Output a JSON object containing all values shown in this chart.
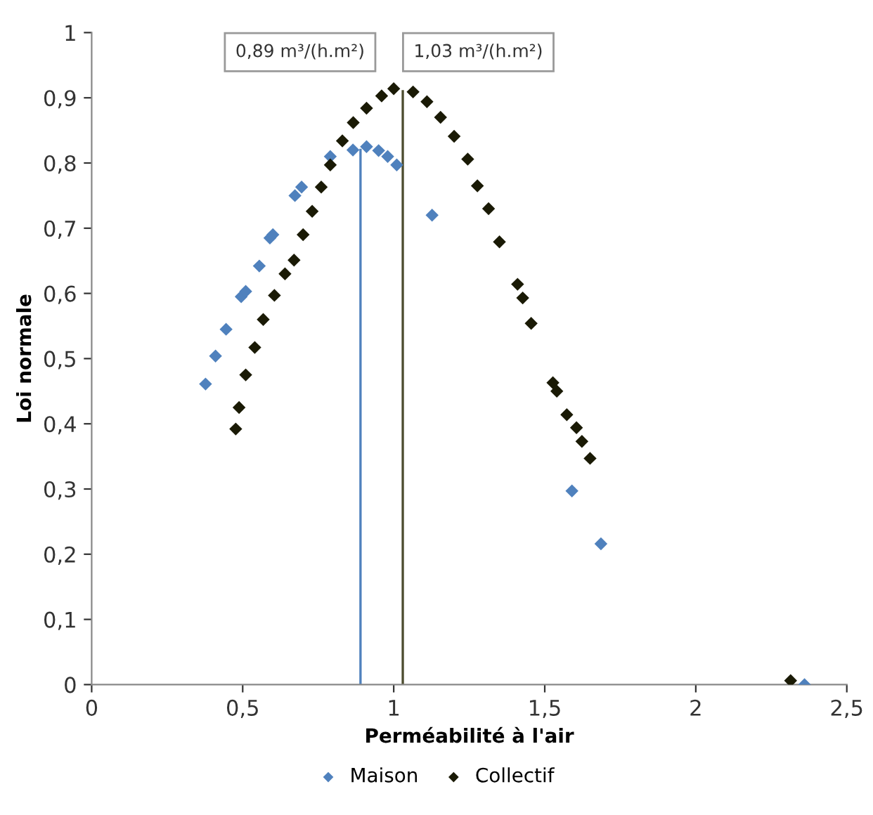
{
  "chart_data": {
    "type": "scatter",
    "xlabel": "Perméabilité à l'air",
    "ylabel": "Loi normale",
    "xlim": [
      0,
      2.5
    ],
    "xticks": [
      {
        "value": 0,
        "label": "0"
      },
      {
        "value": 0.5,
        "label": "0,5"
      },
      {
        "value": 1,
        "label": "1"
      },
      {
        "value": 1.5,
        "label": "1,5"
      },
      {
        "value": 2,
        "label": "2"
      },
      {
        "value": 2.5,
        "label": "2,5"
      }
    ],
    "ylim": [
      0,
      1
    ],
    "yticks": [
      {
        "value": 0,
        "label": "0"
      },
      {
        "value": 0.1,
        "label": "0,1"
      },
      {
        "value": 0.2,
        "label": "0,2"
      },
      {
        "value": 0.3,
        "label": "0,3"
      },
      {
        "value": 0.4,
        "label": "0,4"
      },
      {
        "value": 0.5,
        "label": "0,5"
      },
      {
        "value": 0.6,
        "label": "0,6"
      },
      {
        "value": 0.7,
        "label": "0,7"
      },
      {
        "value": 0.8,
        "label": "0,8"
      },
      {
        "value": 0.9,
        "label": "0,9"
      },
      {
        "value": 1,
        "label": "1"
      }
    ],
    "grid": false,
    "legend": "bottom",
    "marker": "diamond",
    "annotations": [
      "0,89 m³/(h.m²)",
      "1,03 m³/(h.m²)"
    ],
    "series": [
      {
        "name": "Maison",
        "color": "#4f81bd",
        "x": [
          0.377,
          0.41,
          0.445,
          0.495,
          0.51,
          0.555,
          0.59,
          0.6,
          0.673,
          0.695,
          0.79,
          0.865,
          0.91,
          0.95,
          0.98,
          1.01,
          1.127,
          1.59,
          1.686,
          2.36
        ],
        "values": [
          0.461,
          0.504,
          0.545,
          0.595,
          0.603,
          0.642,
          0.685,
          0.69,
          0.75,
          0.763,
          0.81,
          0.82,
          0.825,
          0.819,
          0.81,
          0.797,
          0.72,
          0.297,
          0.216,
          0.0
        ]
      },
      {
        "name": "Collectif",
        "color": "#1a1a05",
        "x": [
          0.477,
          0.488,
          0.51,
          0.54,
          0.568,
          0.605,
          0.64,
          0.67,
          0.7,
          0.73,
          0.76,
          0.79,
          0.83,
          0.866,
          0.91,
          0.96,
          1.0,
          1.064,
          1.11,
          1.155,
          1.2,
          1.245,
          1.277,
          1.314,
          1.35,
          1.41,
          1.427,
          1.455,
          1.527,
          1.54,
          1.573,
          1.605,
          1.623,
          1.65,
          2.314
        ],
        "values": [
          0.392,
          0.425,
          0.475,
          0.517,
          0.56,
          0.597,
          0.63,
          0.651,
          0.69,
          0.726,
          0.763,
          0.797,
          0.834,
          0.862,
          0.884,
          0.903,
          0.914,
          0.909,
          0.894,
          0.87,
          0.841,
          0.806,
          0.765,
          0.73,
          0.679,
          0.614,
          0.593,
          0.554,
          0.463,
          0.45,
          0.414,
          0.394,
          0.373,
          0.347,
          0.006
        ]
      },
      {
        "type": "line",
        "marker": "none",
        "color": "#4f81bd",
        "x": [
          0.89,
          0.89
        ],
        "values": [
          0,
          0.82
        ]
      },
      {
        "type": "line",
        "marker": "none",
        "color": "#4d4d2f",
        "x": [
          1.03,
          1.03
        ],
        "values": [
          0,
          0.91
        ]
      }
    ]
  }
}
